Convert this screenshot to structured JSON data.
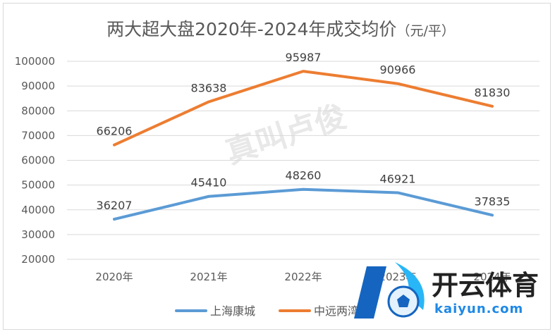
{
  "chart_data": {
    "type": "line",
    "title": "两大超大盘2020年-2024年成交均价",
    "title_unit": "（元/平）",
    "categories": [
      "2020年",
      "2021年",
      "2022年",
      "2023年",
      "2024年"
    ],
    "series": [
      {
        "name": "上海康城",
        "values": [
          36207,
          45410,
          48260,
          46921,
          37835
        ],
        "color": "#5b9bd5"
      },
      {
        "name": "中远两湾城",
        "values": [
          66206,
          83638,
          95987,
          90966,
          81830
        ],
        "color": "#ed7d31"
      }
    ],
    "ylim": [
      20000,
      100000
    ],
    "yticks": [
      20000,
      30000,
      40000,
      50000,
      60000,
      70000,
      80000,
      90000,
      100000
    ],
    "grid": true,
    "legend_position": "bottom"
  },
  "watermark": {
    "text": "真叫卢俊"
  },
  "logo": {
    "brand": "开云体育",
    "domain": "kaiyun.com"
  }
}
